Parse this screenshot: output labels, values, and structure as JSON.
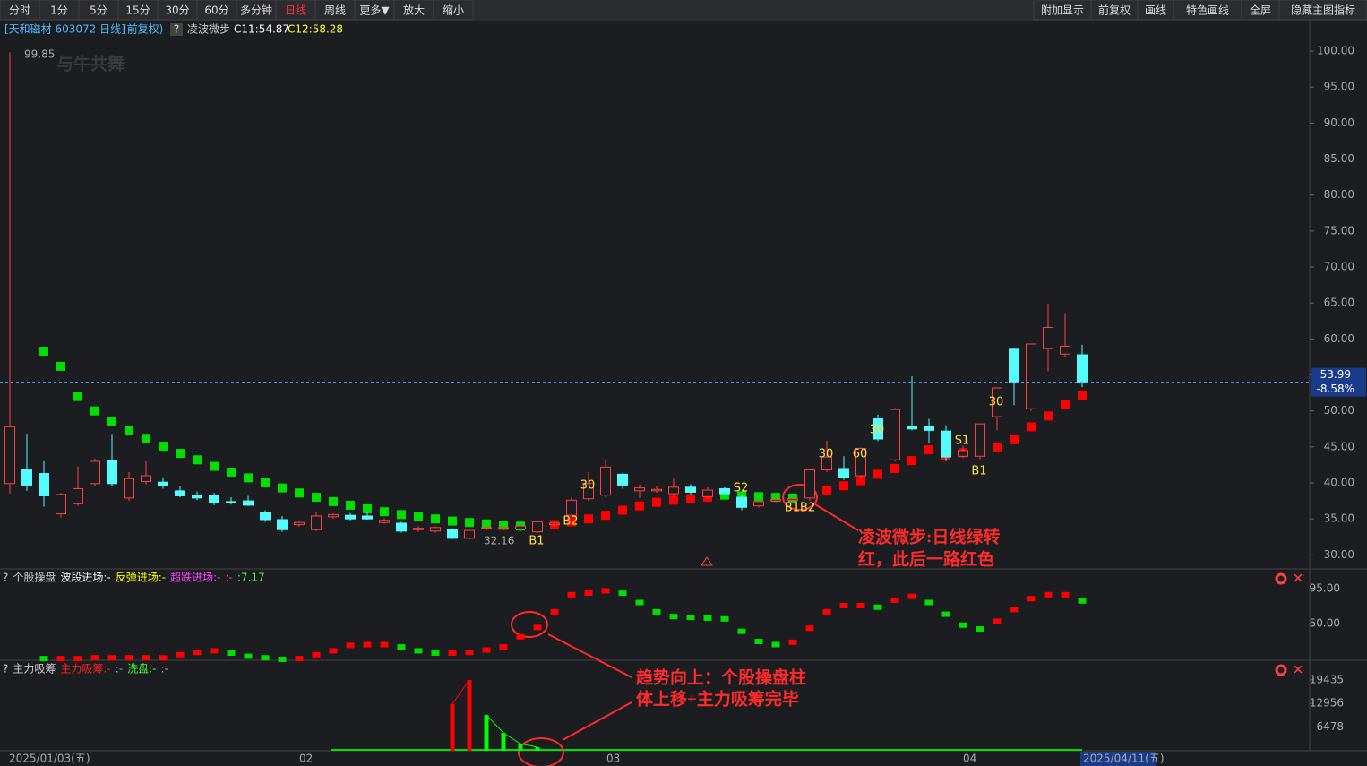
{
  "toolbar": {
    "left": [
      "分时",
      "1分",
      "5分",
      "15分",
      "30分",
      "60分",
      "多分钟",
      "日线",
      "周线",
      "更多▼",
      "放大",
      "缩小"
    ],
    "active": "日线",
    "right": [
      "附加显示",
      "前复权",
      "画线",
      "特色画线",
      "全屏",
      "隐藏主图指标"
    ]
  },
  "header": {
    "stock": "[天和磁材 603072 日线]",
    "adjust": "(前复权)",
    "help": "?",
    "indicator": "凌波微步",
    "c1": "C11:54.87",
    "c2": "C12:58.28"
  },
  "watermark": "与牛共舞",
  "main": {
    "type": "candlestick",
    "ylim": [
      28.3,
      101.5
    ],
    "yticks": [
      {
        "value": 30,
        "label": "30.00"
      },
      {
        "value": 35,
        "label": "35.00"
      },
      {
        "value": 40,
        "label": "40.00"
      },
      {
        "value": 45,
        "label": "45.00"
      },
      {
        "value": 50,
        "label": "50.00"
      },
      {
        "value": 55,
        "label": "55.00"
      },
      {
        "value": 60,
        "label": "60.00"
      },
      {
        "value": 65,
        "label": "65.00"
      },
      {
        "value": 70,
        "label": "70.00"
      },
      {
        "value": 75,
        "label": "75.00"
      },
      {
        "value": 80,
        "label": "80.00"
      },
      {
        "value": 85,
        "label": "85.00"
      },
      {
        "value": 90,
        "label": "90.00"
      },
      {
        "value": 95,
        "label": "95.00"
      },
      {
        "value": 100,
        "label": "100.00"
      }
    ],
    "up_color": "#ff4040",
    "down_color": "#54fcfc",
    "candles": [
      [
        39.9,
        99.85,
        38.5,
        47.8
      ],
      [
        41.8,
        46.8,
        38.9,
        39.7
      ],
      [
        41.3,
        43.0,
        36.7,
        38.2
      ],
      [
        35.7,
        38.6,
        35.2,
        38.4
      ],
      [
        37.1,
        42.3,
        36.8,
        39.2
      ],
      [
        39.9,
        43.4,
        39.5,
        43.0
      ],
      [
        43.1,
        46.8,
        39.6,
        39.9
      ],
      [
        37.9,
        41.5,
        37.5,
        40.6
      ],
      [
        40.2,
        43.0,
        39.8,
        41.0
      ],
      [
        40.1,
        40.8,
        39.2,
        39.6
      ],
      [
        38.9,
        39.6,
        38.0,
        38.2
      ],
      [
        38.2,
        38.8,
        37.6,
        37.9
      ],
      [
        38.2,
        38.6,
        36.9,
        37.2
      ],
      [
        37.4,
        38.0,
        37.0,
        37.2
      ],
      [
        37.5,
        38.2,
        36.8,
        36.9
      ],
      [
        35.9,
        36.2,
        34.6,
        34.9
      ],
      [
        34.9,
        35.4,
        33.2,
        33.5
      ],
      [
        34.2,
        34.8,
        33.9,
        34.5
      ],
      [
        33.5,
        36.0,
        33.3,
        35.4
      ],
      [
        35.3,
        35.8,
        35.0,
        35.6
      ],
      [
        35.5,
        35.8,
        34.8,
        35.0
      ],
      [
        35.4,
        35.9,
        34.9,
        35.0
      ],
      [
        34.5,
        35.1,
        34.3,
        34.8
      ],
      [
        34.4,
        34.6,
        33.1,
        33.3
      ],
      [
        33.5,
        34.0,
        33.2,
        33.7
      ],
      [
        33.3,
        34.0,
        33.1,
        33.8
      ],
      [
        33.5,
        33.7,
        32.2,
        32.3
      ],
      [
        32.3,
        33.6,
        32.16,
        33.4
      ],
      [
        33.7,
        34.0,
        33.4,
        33.8
      ],
      [
        33.7,
        34.0,
        33.4,
        33.8
      ],
      [
        33.6,
        34.3,
        33.3,
        34.0
      ],
      [
        33.2,
        34.8,
        33.0,
        34.6
      ],
      [
        34.2,
        34.6,
        33.9,
        34.4
      ],
      [
        35.5,
        38.0,
        35.2,
        37.6
      ],
      [
        37.8,
        41.5,
        37.5,
        39.9
      ],
      [
        38.3,
        43.3,
        38.0,
        42.2
      ],
      [
        41.2,
        41.4,
        39.2,
        39.7
      ],
      [
        38.9,
        39.8,
        37.9,
        39.3
      ],
      [
        38.9,
        39.6,
        38.6,
        39.1
      ],
      [
        38.5,
        40.6,
        38.0,
        39.4
      ],
      [
        39.4,
        39.8,
        38.4,
        38.7
      ],
      [
        38.1,
        39.4,
        37.7,
        39.0
      ],
      [
        39.2,
        39.4,
        38.3,
        38.5
      ],
      [
        38.0,
        38.3,
        36.2,
        36.6
      ],
      [
        36.8,
        37.6,
        36.6,
        37.4
      ],
      [
        37.5,
        37.9,
        37.3,
        37.7
      ],
      [
        37.6,
        38.0,
        37.4,
        37.8
      ],
      [
        37.9,
        42.0,
        37.5,
        41.8
      ],
      [
        41.8,
        45.9,
        41.5,
        43.6
      ],
      [
        42.0,
        43.7,
        40.4,
        40.7
      ],
      [
        41.0,
        44.9,
        40.7,
        44.8
      ],
      [
        48.9,
        49.5,
        45.8,
        46.1
      ],
      [
        43.2,
        50.4,
        43.0,
        50.2
      ],
      [
        47.8,
        54.8,
        47.3,
        47.5
      ],
      [
        47.8,
        48.9,
        45.6,
        47.3
      ],
      [
        47.2,
        48.0,
        43.0,
        43.6
      ],
      [
        43.7,
        45.2,
        43.5,
        44.5
      ],
      [
        43.7,
        48.2,
        43.3,
        48.2
      ],
      [
        49.2,
        53.2,
        47.3,
        53.2
      ],
      [
        58.7,
        58.8,
        50.8,
        54.0
      ],
      [
        50.3,
        59.3,
        50.0,
        59.3
      ],
      [
        58.7,
        64.9,
        55.5,
        61.6
      ],
      [
        57.9,
        63.6,
        57.5,
        59.0
      ],
      [
        57.8,
        59.2,
        53.3,
        53.99
      ]
    ],
    "trail_green": {
      "color": "#00e000",
      "values": [
        null,
        null,
        58.3,
        56.2,
        52,
        50,
        48.5,
        47.3,
        46.2,
        45.1,
        44.1,
        43.2,
        42.3,
        41.5,
        40.7,
        40,
        39.3,
        38.6,
        38,
        37.4,
        36.9,
        36.4,
        36,
        35.6,
        35.3,
        35,
        34.7,
        34.5,
        34.3,
        34.1,
        34,
        33.9,
        null,
        null,
        null,
        null,
        null,
        null,
        null,
        null,
        null,
        null,
        38.3,
        38.2,
        38.1,
        38,
        37.9,
        null,
        null,
        null,
        null,
        null,
        null,
        null,
        null,
        null,
        null,
        null,
        null,
        null,
        null,
        null,
        null,
        null
      ]
    },
    "trail_red": {
      "color": "#ff0000",
      "values": [
        null,
        null,
        null,
        null,
        null,
        null,
        null,
        null,
        null,
        null,
        null,
        null,
        null,
        null,
        null,
        null,
        null,
        null,
        null,
        null,
        null,
        null,
        null,
        null,
        null,
        null,
        null,
        null,
        null,
        null,
        null,
        null,
        34.2,
        34.6,
        35,
        35.5,
        36.2,
        36.8,
        37.3,
        37.6,
        37.8,
        38,
        null,
        null,
        null,
        null,
        null,
        38.5,
        39,
        39.6,
        40.3,
        41.2,
        42,
        43.1,
        44.6,
        43.8,
        44.2,
        44.6,
        45,
        46,
        47.8,
        49.3,
        50.9,
        52.2
      ]
    },
    "change_label": "-8.58%",
    "signals": [
      "30",
      "B2",
      "B1",
      "S2",
      "B1B2",
      "30",
      "60",
      "30",
      "S1",
      "B1",
      "30"
    ]
  },
  "panel1": {
    "type": "bar",
    "header": [
      {
        "text": "?",
        "color": "#cccccc"
      },
      {
        "text": "个股操盘",
        "color": "#cccccc"
      },
      {
        "text": "波段进场:-",
        "color": "#ffffff"
      },
      {
        "text": "反弹进场:-",
        "color": "#ffff00"
      },
      {
        "text": "超跌进场:-",
        "color": "#ff40ff"
      },
      {
        "text": ":-",
        "color": "#ff4040"
      },
      {
        "text": ":7.17",
        "color": "#40ff40"
      }
    ],
    "ylim": [
      4,
      96
    ],
    "yticks": [
      {
        "value": 95,
        "label": "95.00"
      },
      {
        "value": 50,
        "label": "50.00"
      }
    ],
    "up_color": "#ff0000",
    "down_color": "#00e000",
    "values": [
      null,
      null,
      5,
      5,
      5,
      6,
      6,
      6,
      6,
      6,
      10,
      13,
      15,
      12,
      8,
      6,
      4,
      5,
      10,
      15,
      22,
      23,
      23,
      20,
      15,
      12,
      12,
      13,
      16,
      20,
      33,
      45,
      65,
      87,
      89,
      92,
      89,
      77,
      65,
      59,
      58,
      57,
      56,
      40,
      27,
      23,
      26,
      44,
      65,
      73,
      73,
      71,
      80,
      85,
      77,
      62,
      48,
      43,
      53,
      68,
      82,
      87,
      87,
      79
    ]
  },
  "panel2": {
    "type": "bar",
    "title": "主力吸筹",
    "header": [
      {
        "text": "?",
        "color": "#cccccc"
      },
      {
        "text": "主力吸筹",
        "color": "#cccccc"
      },
      {
        "text": "主力吸筹:-",
        "color": "#ff2020"
      },
      {
        "text": ":-",
        "color": "#aaaaaa"
      },
      {
        "text": "洗盘:-",
        "color": "#40ff40"
      },
      {
        "text": ":-",
        "color": "#aaaaaa"
      }
    ],
    "ylim": [
      0,
      21100
    ],
    "yticks": [
      6478,
      12956,
      19435
    ],
    "series": [
      {
        "name": "主力吸筹",
        "color": "#ff0000",
        "values": [
          null,
          null,
          null,
          null,
          null,
          null,
          null,
          null,
          null,
          null,
          null,
          null,
          null,
          null,
          null,
          null,
          null,
          null,
          null,
          null,
          null,
          null,
          null,
          null,
          null,
          null,
          12800,
          19400,
          null,
          null,
          null,
          null,
          null,
          null,
          null,
          null,
          null,
          null,
          null,
          null,
          null,
          null,
          null,
          null,
          null,
          null,
          null,
          null,
          null,
          null,
          null,
          null,
          null,
          null,
          null,
          null,
          null,
          null,
          null,
          null,
          null,
          null,
          null,
          null
        ]
      },
      {
        "name": "洗盘",
        "color": "#00ff00",
        "values": [
          null,
          null,
          null,
          null,
          null,
          null,
          null,
          null,
          null,
          null,
          null,
          null,
          null,
          null,
          null,
          null,
          null,
          null,
          null,
          null,
          null,
          null,
          null,
          null,
          null,
          null,
          null,
          null,
          9800,
          4900,
          1900,
          1000,
          null,
          null,
          null,
          null,
          null,
          null,
          null,
          null,
          null,
          null,
          null,
          null,
          null,
          null,
          null,
          null,
          null,
          null,
          null,
          null,
          null,
          null,
          null,
          null,
          null,
          null,
          null,
          null,
          null,
          null,
          null,
          null
        ]
      }
    ]
  },
  "dates": [
    "2025/01/03(五)",
    "02",
    "03",
    "04",
    "2025/04/11(五)"
  ],
  "annotations": [
    "凌波微步:日线绿转",
    "红，此后一路红色",
    "趋势向上：个股操盘柱",
    "体上移+主力吸筹完毕"
  ]
}
